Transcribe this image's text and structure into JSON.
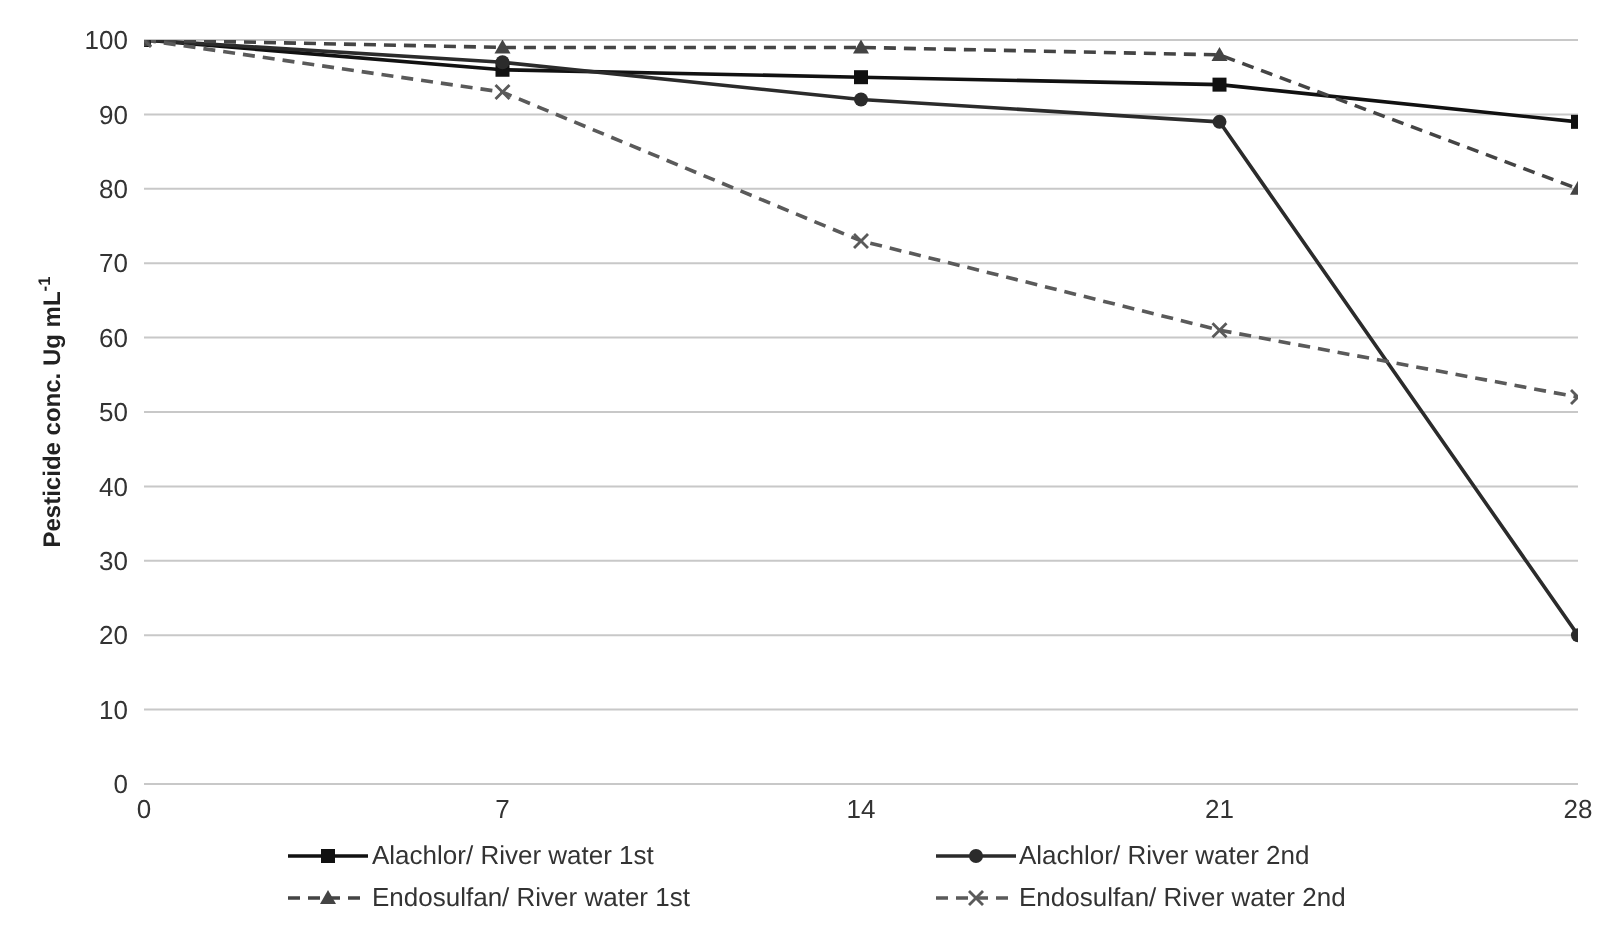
{
  "chart_data": {
    "type": "line",
    "ylabel": "Pesticide conc. Ug mL$^{-1}$",
    "x": [
      0,
      7,
      14,
      21,
      28
    ],
    "xlim": [
      0,
      28
    ],
    "xticks": [
      0,
      7,
      14,
      21,
      28
    ],
    "ylim": [
      0,
      100
    ],
    "yticks": [
      0,
      10,
      20,
      30,
      40,
      50,
      60,
      70,
      80,
      90,
      100
    ],
    "grid": "y",
    "legend": "bottom",
    "series": [
      {
        "name": "Alachlor/ River water 1st",
        "color": "#111111",
        "marker": "square",
        "line_style": "solid",
        "values": [
          100,
          96,
          95,
          94,
          89
        ]
      },
      {
        "name": "Alachlor/ River water 2nd",
        "color": "#2b2b2b",
        "marker": "circle",
        "line_style": "solid",
        "values": [
          100,
          97,
          92,
          89,
          20
        ]
      },
      {
        "name": "Endosulfan/ River water 1st",
        "color": "#444444",
        "marker": "triangle",
        "line_style": "dashed",
        "values": [
          100,
          99,
          99,
          98,
          80
        ]
      },
      {
        "name": "Endosulfan/ River water 2nd",
        "color": "#5a5a5a",
        "marker": "cross",
        "line_style": "dashed",
        "values": [
          100,
          93,
          73,
          61,
          52
        ]
      }
    ]
  }
}
